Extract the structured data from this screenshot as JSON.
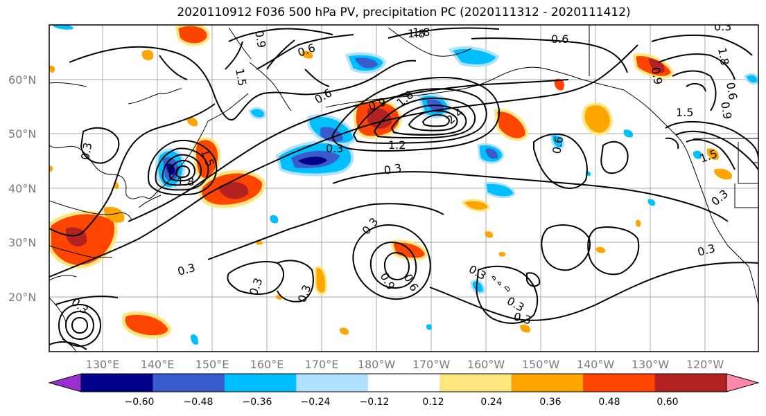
{
  "title": "2020110912 F036 500 hPa PV, precipitation PC (2020111312 - 2020111412)",
  "lat_labels": [
    "60°N",
    "50°N",
    "40°N",
    "30°N",
    "20°N"
  ],
  "lon_labels": [
    "130°E",
    "140°E",
    "150°E",
    "160°E",
    "170°E",
    "180°W",
    "170°W",
    "160°W",
    "150°W",
    "140°W",
    "130°W",
    "120°W"
  ],
  "colorbar": {
    "ticks": [
      "−0.60",
      "−0.48",
      "−0.36",
      "−0.24",
      "−0.12",
      "0.12",
      "0.24",
      "0.36",
      "0.48",
      "0.60"
    ],
    "colors": [
      "#9b30d0",
      "#00008b",
      "#3a5bcc",
      "#00bfff",
      "#b0e2ff",
      "#ffffff",
      "#ffe680",
      "#ffa500",
      "#ff4500",
      "#b22222",
      "#ff88aa"
    ]
  },
  "contour_labels": [
    {
      "text": "1.8"
    },
    {
      "text": "0.6"
    },
    {
      "text": "0.6"
    },
    {
      "text": "1.5"
    },
    {
      "text": "0.9"
    },
    {
      "text": "0.6"
    },
    {
      "text": "0.9"
    },
    {
      "text": "1.8"
    },
    {
      "text": "2.4"
    },
    {
      "text": "1.2"
    },
    {
      "text": "0.3"
    },
    {
      "text": "0.3"
    },
    {
      "text": "1.8"
    },
    {
      "text": "1.5"
    },
    {
      "text": "0.3"
    },
    {
      "text": "0.3"
    },
    {
      "text": "0.3"
    },
    {
      "text": "0.3"
    },
    {
      "text": "0.3"
    },
    {
      "text": "0.9"
    },
    {
      "text": "0.6"
    },
    {
      "text": "0.3"
    },
    {
      "text": "0.3"
    },
    {
      "text": "0.3"
    },
    {
      "text": "0.6"
    },
    {
      "text": "1.5"
    },
    {
      "text": "1.5"
    },
    {
      "text": "0.3"
    },
    {
      "text": "0.3"
    },
    {
      "text": "0.9"
    },
    {
      "text": "0.3"
    },
    {
      "text": "0.6"
    },
    {
      "text": "0.9"
    },
    {
      "text": "0.3"
    },
    {
      "text": "1.8"
    },
    {
      "text": "1.8"
    }
  ]
}
